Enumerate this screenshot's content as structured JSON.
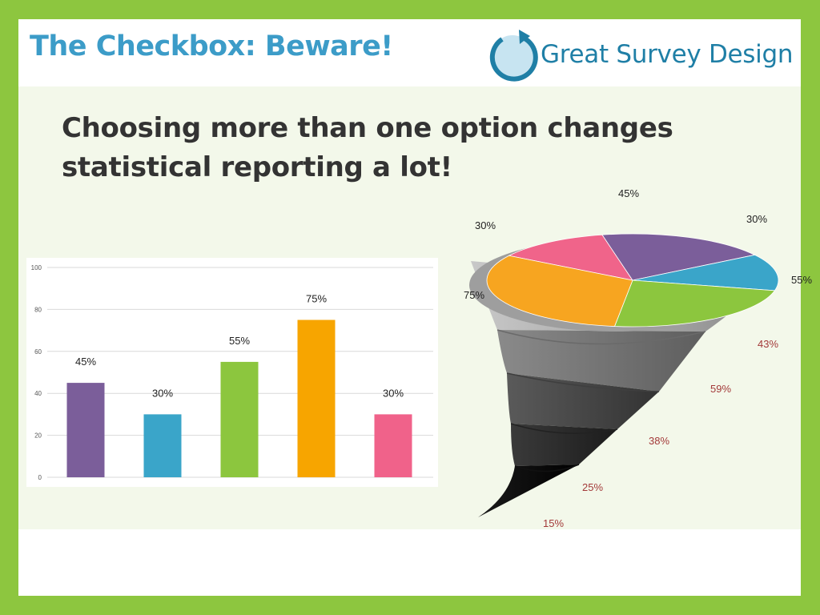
{
  "header": {
    "title": "The Checkbox: Beware!",
    "logo_text": "Great Survey Design",
    "logo_icon": "circular-arrow-icon"
  },
  "main": {
    "subtitle_line1": "Choosing more than one option changes",
    "subtitle_line2": "statistical reporting a lot!"
  },
  "chart_data": [
    {
      "type": "bar",
      "categories": [
        "",
        "",
        "",
        "",
        ""
      ],
      "values": [
        45,
        30,
        55,
        75,
        30
      ],
      "data_labels": [
        "45%",
        "30%",
        "55%",
        "75%",
        "30%"
      ],
      "colors": [
        "#7b5e9a",
        "#3aa5c9",
        "#8cc63e",
        "#f7a500",
        "#f0628a"
      ],
      "ylim": [
        0,
        100
      ],
      "yticks": [
        0,
        20,
        40,
        60,
        80,
        100
      ],
      "grid": true
    },
    {
      "type": "pie",
      "variant": "3d-pie-on-funnel",
      "pie_values": [
        30,
        45,
        30,
        55,
        75
      ],
      "pie_labels": [
        "30%",
        "45%",
        "30%",
        "55%",
        "75%"
      ],
      "pie_colors": [
        "#f0648a",
        "#7b5e9a",
        "#3aa5c9",
        "#8cc63e",
        "#f7a520"
      ],
      "funnel_labels": [
        "43%",
        "59%",
        "38%",
        "25%",
        "15%"
      ],
      "funnel_label_color": "#a33a3a"
    }
  ]
}
